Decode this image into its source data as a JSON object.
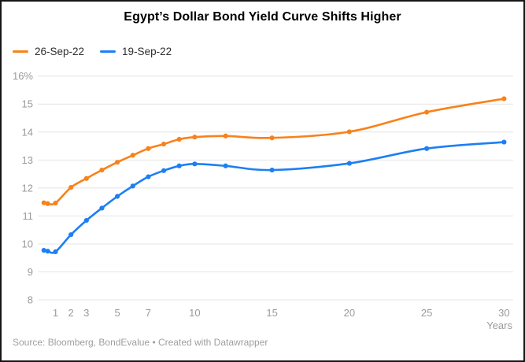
{
  "chart_data": {
    "type": "line",
    "title": "Egypt’s Dollar Bond Yield Curve Shifts Higher",
    "xlabel": "Years",
    "source": "Source: Bloomberg, BondEvalue • Created with Datawrapper",
    "legend_position": "top-left",
    "grid": "horizontal",
    "ylim": [
      8,
      16
    ],
    "xlim": [
      0,
      30.6
    ],
    "x_ticks": [
      1,
      2,
      3,
      5,
      7,
      10,
      15,
      20,
      25,
      30
    ],
    "y_ticks": [
      {
        "value": 16,
        "label": "16%"
      },
      {
        "value": 15,
        "label": "15"
      },
      {
        "value": 14,
        "label": "14"
      },
      {
        "value": 13,
        "label": "13"
      },
      {
        "value": 12,
        "label": "12"
      },
      {
        "value": 11,
        "label": "11"
      },
      {
        "value": 10,
        "label": "10"
      },
      {
        "value": 9,
        "label": "9"
      },
      {
        "value": 8,
        "label": "8"
      }
    ],
    "x": [
      0.25,
      0.5,
      1,
      2,
      3,
      4,
      5,
      6,
      7,
      8,
      9,
      10,
      12,
      15,
      20,
      25,
      30
    ],
    "series": [
      {
        "name": "26-Sep-22",
        "color": "#f8821a",
        "values": [
          11.47,
          11.44,
          11.46,
          12.02,
          12.34,
          12.64,
          12.92,
          13.17,
          13.41,
          13.57,
          13.74,
          13.82,
          13.86,
          13.79,
          14.01,
          14.71,
          15.19
        ]
      },
      {
        "name": "19-Sep-22",
        "color": "#1d7ff3",
        "values": [
          9.77,
          9.74,
          9.72,
          10.33,
          10.84,
          11.28,
          11.7,
          12.07,
          12.4,
          12.62,
          12.79,
          12.86,
          12.79,
          12.64,
          12.88,
          13.41,
          13.64
        ]
      }
    ]
  }
}
